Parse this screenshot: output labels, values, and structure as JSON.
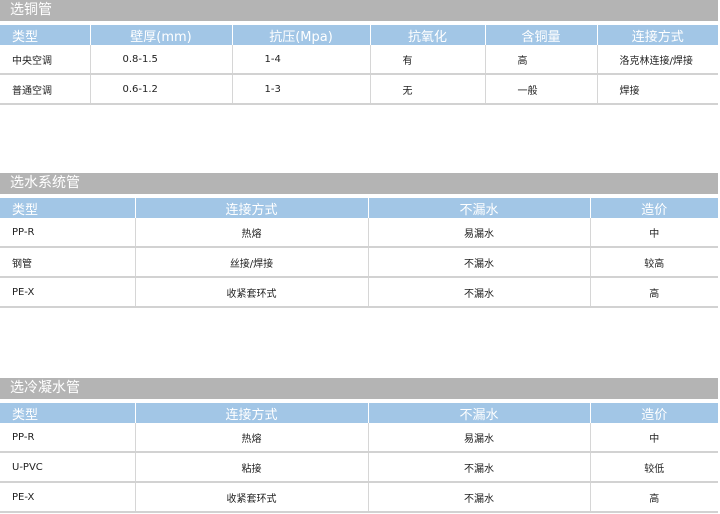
{
  "tables": [
    {
      "title": "选铜管",
      "headers": [
        "类型",
        "壁厚(mm)",
        "抗压(Mpa)",
        "抗氧化",
        "含铜量",
        "连接方式"
      ],
      "rows": [
        [
          "中央空调",
          "0.8-1.5",
          "1-4",
          "有",
          "高",
          "洛克林连接/焊接"
        ],
        [
          "普通空调",
          "0.6-1.2",
          "1-3",
          "无",
          "一般",
          "焊接"
        ]
      ]
    },
    {
      "title": "选水系统管",
      "headers": [
        "类型",
        "连接方式",
        "不漏水",
        "造价"
      ],
      "rows": [
        [
          "PP-R",
          "热熔",
          "易漏水",
          "中"
        ],
        [
          "钢管",
          "丝接/焊接",
          "不漏水",
          "较高"
        ],
        [
          "PE-X",
          "收紧套环式",
          "不漏水",
          "高"
        ]
      ]
    },
    {
      "title": "选冷凝水管",
      "headers": [
        "类型",
        "连接方式",
        "不漏水",
        "造价"
      ],
      "rows": [
        [
          "PP-R",
          "热熔",
          "易漏水",
          "中"
        ],
        [
          "U-PVC",
          "粘接",
          "不漏水",
          "较低"
        ],
        [
          "PE-X",
          "收紧套环式",
          "不漏水",
          "高"
        ]
      ]
    }
  ]
}
